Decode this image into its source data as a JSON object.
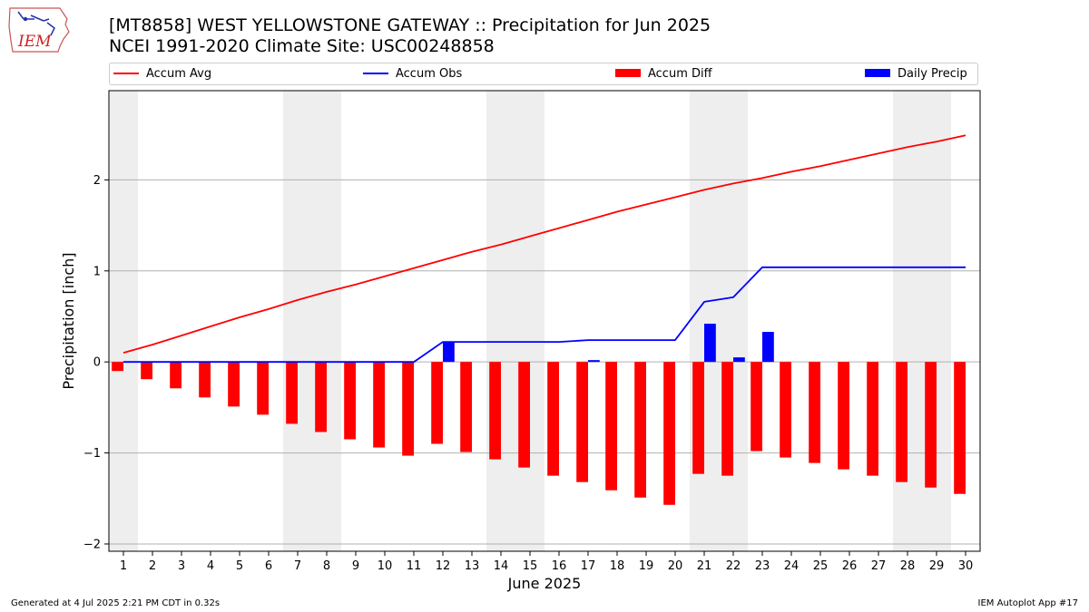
{
  "logo": {
    "text": "IEM",
    "icon": "iowa-state-outline-icon"
  },
  "title": "[MT8858] WEST YELLOWSTONE GATEWAY :: Precipitation for Jun 2025",
  "subtitle": "NCEI 1991-2020 Climate Site: USC00248858",
  "legend": {
    "placement": "top",
    "items": [
      {
        "label": "Accum Avg",
        "kind": "line",
        "color": "#ff0000"
      },
      {
        "label": "Accum Obs",
        "kind": "line",
        "color": "#0000ff"
      },
      {
        "label": "Accum Diff",
        "kind": "bar",
        "color": "#ff0000"
      },
      {
        "label": "Daily Precip",
        "kind": "bar",
        "color": "#0000ff"
      }
    ]
  },
  "footer": {
    "left": "Generated at 4 Jul 2025 2:21 PM CDT in 0.32s",
    "right": "IEM Autoplot App #17"
  },
  "chart_data": {
    "type": "bar",
    "xlabel": "June 2025",
    "ylabel": "Precipitation [inch]",
    "x": [
      1,
      2,
      3,
      4,
      5,
      6,
      7,
      8,
      9,
      10,
      11,
      12,
      13,
      14,
      15,
      16,
      17,
      18,
      19,
      20,
      21,
      22,
      23,
      24,
      25,
      26,
      27,
      28,
      29,
      30
    ],
    "xlim": [
      0.5,
      30.5
    ],
    "ylim": [
      -2.08,
      2.98
    ],
    "yticks": [
      -2,
      -1,
      0,
      1,
      2
    ],
    "ytick_labels": [
      "−2",
      "−1",
      "0",
      "1",
      "2"
    ],
    "grid": "horizontal",
    "weekend_shading": [
      [
        0.5,
        1.5
      ],
      [
        6.5,
        8.5
      ],
      [
        13.5,
        15.5
      ],
      [
        20.5,
        22.5
      ],
      [
        27.5,
        29.5
      ]
    ],
    "shade_color": "#eeeeee",
    "series": [
      {
        "name": "Accum Avg",
        "type": "line",
        "color": "#ff0000",
        "values": [
          0.1,
          0.19,
          0.29,
          0.39,
          0.49,
          0.58,
          0.68,
          0.77,
          0.85,
          0.94,
          1.03,
          1.12,
          1.21,
          1.29,
          1.38,
          1.47,
          1.56,
          1.65,
          1.73,
          1.81,
          1.89,
          1.96,
          2.02,
          2.09,
          2.15,
          2.22,
          2.29,
          2.36,
          2.42,
          2.49
        ]
      },
      {
        "name": "Accum Obs",
        "type": "line",
        "color": "#0000ff",
        "values": [
          0,
          0,
          0,
          0,
          0,
          0,
          0,
          0,
          0,
          0,
          0,
          0.22,
          0.22,
          0.22,
          0.22,
          0.22,
          0.24,
          0.24,
          0.24,
          0.24,
          0.66,
          0.71,
          1.04,
          1.04,
          1.04,
          1.04,
          1.04,
          1.04,
          1.04,
          1.04
        ]
      },
      {
        "name": "Accum Diff",
        "type": "bar",
        "color": "#ff0000",
        "values": [
          -0.1,
          -0.19,
          -0.29,
          -0.39,
          -0.49,
          -0.58,
          -0.68,
          -0.77,
          -0.85,
          -0.94,
          -1.03,
          -0.9,
          -0.99,
          -1.07,
          -1.16,
          -1.25,
          -1.32,
          -1.41,
          -1.49,
          -1.57,
          -1.23,
          -1.25,
          -0.98,
          -1.05,
          -1.11,
          -1.18,
          -1.25,
          -1.32,
          -1.38,
          -1.45
        ]
      },
      {
        "name": "Daily Precip",
        "type": "bar",
        "color": "#0000ff",
        "values": [
          0,
          0,
          0,
          0,
          0,
          0,
          0,
          0,
          0,
          0,
          0,
          0.22,
          0,
          0,
          0,
          0,
          0.02,
          0,
          0,
          0,
          0.42,
          0.05,
          0.33,
          0,
          0,
          0,
          0,
          0,
          0,
          0
        ]
      }
    ]
  }
}
